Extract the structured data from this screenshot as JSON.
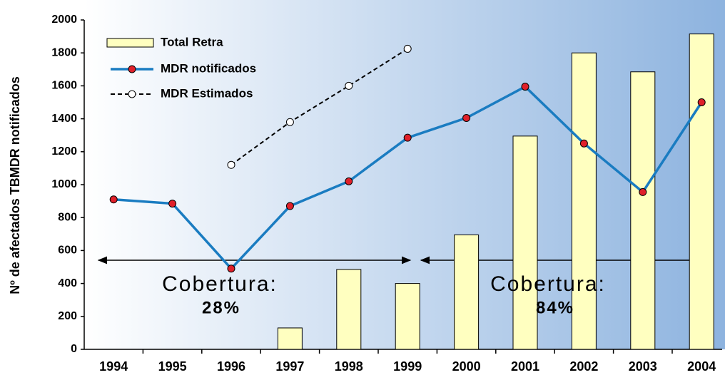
{
  "chart_data": {
    "type": "bar-line",
    "y_label": "Nº de afectados TBMDR notificados",
    "categories": [
      "1994",
      "1995",
      "1996",
      "1997",
      "1998",
      "1999",
      "2000",
      "2001",
      "2002",
      "2003",
      "2004"
    ],
    "series": [
      {
        "name": "Total Retra",
        "type": "bar",
        "color": "#ffffc0",
        "values": [
          null,
          null,
          null,
          130,
          485,
          400,
          695,
          1295,
          1800,
          1685,
          1915
        ]
      },
      {
        "name": "MDR notificados",
        "type": "line",
        "color": "#1a7cc1",
        "marker_color": "#e0202a",
        "values": [
          910,
          885,
          490,
          870,
          1020,
          1285,
          1405,
          1595,
          1250,
          955,
          1500
        ]
      },
      {
        "name": "MDR Estimados",
        "type": "dashed-line",
        "color": "#000000",
        "marker_color": "#ffffff",
        "values": [
          null,
          null,
          1120,
          1380,
          1600,
          1825,
          null,
          null,
          null,
          null,
          null
        ]
      }
    ],
    "annotations": [
      "Cobertura:",
      "28%",
      "Cobertura:",
      "84%"
    ],
    "ylim": [
      0,
      2000
    ],
    "yticks": [
      0,
      200,
      400,
      600,
      800,
      1000,
      1200,
      1400,
      1600,
      1800,
      2000
    ]
  }
}
